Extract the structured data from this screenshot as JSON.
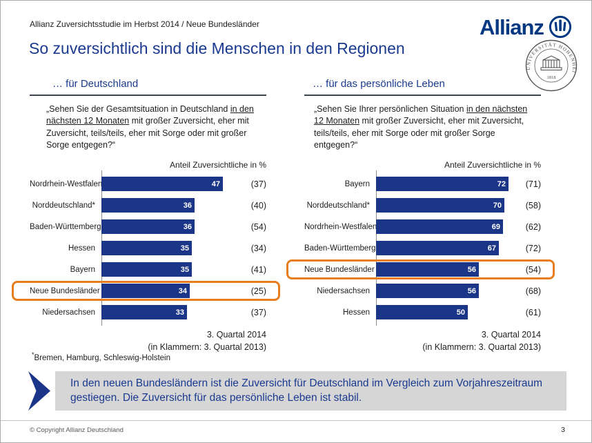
{
  "header": {
    "studyline": "Allianz Zuversichtsstudie im Herbst 2014 / Neue Bundesländer",
    "title": "So zuversichtlich sind die Menschen in den Regionen"
  },
  "logo": {
    "wordmark": "Allianz"
  },
  "seal": {
    "institution": "UNIVERSITÄT HOHENHEIM",
    "year": "1818"
  },
  "chart_data": [
    {
      "type": "bar",
      "orientation": "horizontal",
      "panel_title": "… für Deutschland",
      "question_prefix": "„Sehen Sie der Gesamtsituation in Deutschland ",
      "question_underlined": "in den nächsten 12 Monaten",
      "question_suffix": " mit großer Zuversicht, eher mit Zuversicht, teils/teils, eher mit Sorge oder mit großer Sorge entgegen?“",
      "axis_label": "Anteil Zuversichtliche in %",
      "categories": [
        "Nordrhein-Westfalen",
        "Norddeutschland*",
        "Baden-Württemberg",
        "Hessen",
        "Bayern",
        "Neue Bundesländer",
        "Niedersachsen"
      ],
      "series": [
        {
          "name": "3. Quartal 2014",
          "values": [
            47,
            36,
            36,
            35,
            35,
            34,
            33
          ]
        },
        {
          "name": "3. Quartal 2013",
          "values": [
            37,
            40,
            54,
            34,
            41,
            25,
            37
          ]
        }
      ],
      "highlighted_category": "Neue Bundesländer",
      "note_line1": "3. Quartal 2014",
      "note_line2": "(in Klammern: 3. Quartal 2013)",
      "xlim": [
        0,
        50
      ],
      "legend_position": "none",
      "grid": false
    },
    {
      "type": "bar",
      "orientation": "horizontal",
      "panel_title": "… für das persönliche Leben",
      "question_prefix": "„Sehen Sie Ihrer persönlichen Situation ",
      "question_underlined": "in den nächsten 12 Monaten",
      "question_suffix": " mit großer Zuversicht, eher mit Zuversicht, teils/teils, eher mit Sorge oder mit großer Sorge entgegen?“",
      "axis_label": "Anteil Zuversichtliche in %",
      "categories": [
        "Bayern",
        "Norddeutschland*",
        "Nordrhein-Westfalen",
        "Baden-Württemberg",
        "Neue Bundesländer",
        "Niedersachsen",
        "Hessen"
      ],
      "series": [
        {
          "name": "3. Quartal 2014",
          "values": [
            72,
            70,
            69,
            67,
            56,
            56,
            50
          ]
        },
        {
          "name": "3. Quartal 2013",
          "values": [
            71,
            58,
            62,
            72,
            54,
            68,
            61
          ]
        }
      ],
      "highlighted_category": "Neue Bundesländer",
      "note_line1": "3. Quartal 2014",
      "note_line2": "(in Klammern: 3. Quartal 2013)",
      "xlim": [
        0,
        75
      ],
      "legend_position": "none",
      "grid": false
    }
  ],
  "footnote": {
    "marker": "*",
    "text": "Bremen, Hamburg, Schleswig-Holstein"
  },
  "callout": {
    "text": "In den neuen Bundesländern ist die Zuversicht für Deutschland im Vergleich zum Vorjahreszeitraum gestiegen. Die Zuversicht für das persönliche Leben ist stabil."
  },
  "footer": {
    "copyright": "© Copyright Allianz Deutschland",
    "page": "3"
  },
  "colors": {
    "allianz_blue": "#003781",
    "heading_navy": "#1a3a8f",
    "bar_navy": "#1b3588",
    "highlight_orange": "#e87d1e",
    "callout_bg": "#d6d6d6"
  }
}
